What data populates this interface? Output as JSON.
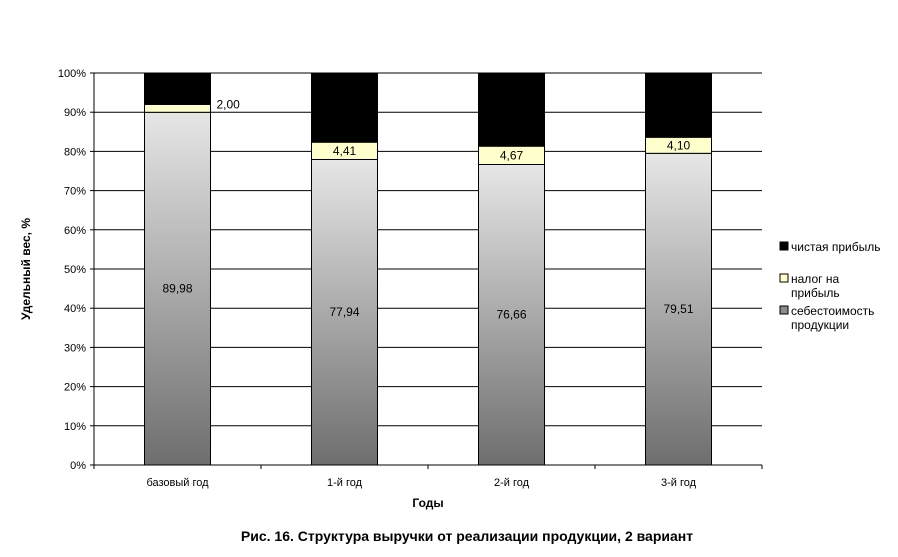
{
  "chart_data": {
    "type": "bar",
    "stacked": true,
    "percent_stacked": true,
    "categories": [
      "базовый год",
      "1-й год",
      "2-й год",
      "3-й год"
    ],
    "series": [
      {
        "name": "себестоимость продукции",
        "values": [
          89.98,
          77.94,
          76.66,
          79.51
        ],
        "color": "gradient-gray",
        "labels": [
          "89,98",
          "77,94",
          "76,66",
          "79,51"
        ]
      },
      {
        "name": "налог на прибыль",
        "values": [
          2.0,
          4.41,
          4.67,
          4.1
        ],
        "color": "#ffffcc",
        "labels": [
          "2,00",
          "4,41",
          "4,67",
          "4,10"
        ]
      },
      {
        "name": "чистая прибыль",
        "values": [
          8.02,
          17.65,
          18.67,
          16.39
        ],
        "color": "#000000"
      }
    ],
    "yticks": [
      "0%",
      "10%",
      "20%",
      "30%",
      "40%",
      "50%",
      "60%",
      "70%",
      "80%",
      "90%",
      "100%"
    ],
    "ylim": [
      0,
      100
    ],
    "xlabel": "Годы",
    "ylabel": "Удельный вес, %",
    "grid": true,
    "legend_position": "right"
  },
  "legend_lines": [
    [
      "чистая прибыль"
    ],
    [
      "налог на",
      "прибыль"
    ],
    [
      "себестоимость",
      "продукции"
    ]
  ],
  "caption": "Рис. 16. Структура выручки от реализации продукции, 2 вариант"
}
